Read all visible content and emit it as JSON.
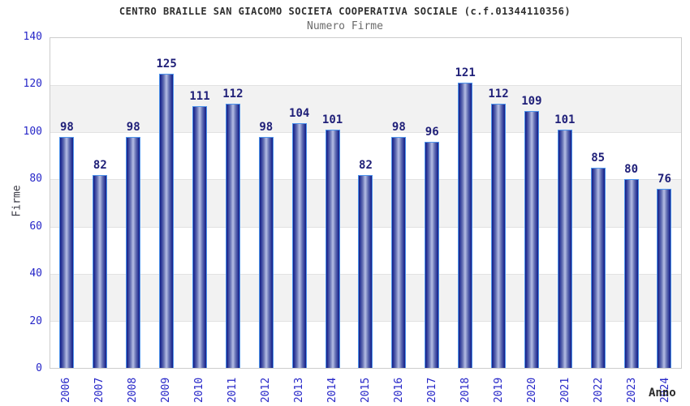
{
  "chart_data": {
    "type": "bar",
    "title": "CENTRO BRAILLE SAN GIACOMO SOCIETA COOPERATIVA SOCIALE (c.f.01344110356)",
    "subtitle": "Numero Firme",
    "xlabel": "Anno",
    "ylabel": "Firme",
    "categories": [
      "2006",
      "2007",
      "2008",
      "2009",
      "2010",
      "2011",
      "2012",
      "2013",
      "2014",
      "2015",
      "2016",
      "2017",
      "2018",
      "2019",
      "2020",
      "2021",
      "2022",
      "2023",
      "2024"
    ],
    "values": [
      98,
      82,
      98,
      125,
      111,
      112,
      98,
      104,
      101,
      82,
      98,
      96,
      121,
      112,
      109,
      101,
      85,
      80,
      76
    ],
    "ylim": [
      0,
      140
    ],
    "yticks": [
      0,
      20,
      40,
      60,
      80,
      100,
      120,
      140
    ],
    "legend": "none",
    "grid": "horizontal gridlines with alternating shaded bands",
    "bar_labels_shown": true,
    "colors": {
      "tick_label": "#2626c8",
      "value_label": "#1f1f78",
      "title": "#2f2f2f",
      "subtitle": "#6b6b6b",
      "axis_title": "#2a2a2a",
      "plot_border": "#cccccc",
      "gridline": "#e2e2e2",
      "band": "#f2f2f2",
      "bar_dark": "#141e84",
      "bar_light": "#b4bce2",
      "bar_border": "#4e94ec",
      "background": "#ffffff"
    }
  }
}
